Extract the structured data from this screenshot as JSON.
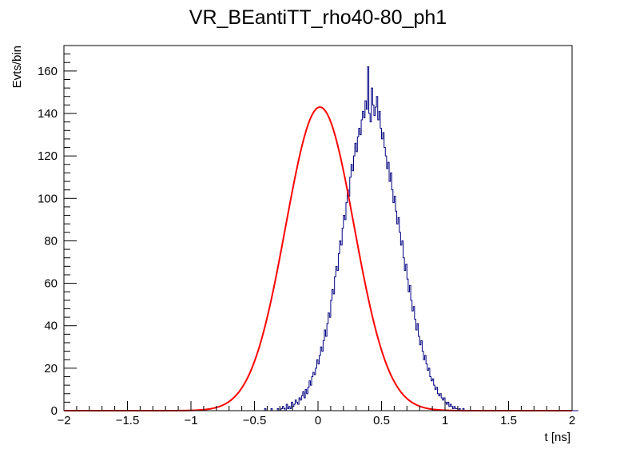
{
  "chart_data": {
    "type": "histogram",
    "title": "VR_BEantiTT_rho40-80_ph1",
    "xlabel": "t [ns]",
    "ylabel": "Evts/bin",
    "xlim": [
      -2,
      2
    ],
    "ylim": [
      0,
      172
    ],
    "x_ticks": [
      -2,
      -1.5,
      -1,
      -0.5,
      0,
      0.5,
      1,
      1.5,
      2
    ],
    "x_tick_labels": [
      "−2",
      "−1.5",
      "−1",
      "−0.5",
      "0",
      "0.5",
      "1",
      "1.5",
      "2"
    ],
    "y_ticks": [
      0,
      20,
      40,
      60,
      80,
      100,
      120,
      140,
      160
    ],
    "y_tick_labels": [
      "0",
      "20",
      "40",
      "60",
      "80",
      "100",
      "120",
      "140",
      "160"
    ],
    "grid": false,
    "series": [
      {
        "kind": "histogram",
        "color": "#000080",
        "bin_width": 0.01,
        "x_start": -2.0,
        "counts": [
          0,
          0,
          0,
          0,
          0,
          0,
          0,
          0,
          0,
          0,
          0,
          0,
          0,
          0,
          0,
          0,
          0,
          0,
          0,
          0,
          0,
          0,
          0,
          0,
          0,
          0,
          0,
          0,
          0,
          0,
          0,
          0,
          0,
          0,
          0,
          0,
          0,
          0,
          0,
          0,
          0,
          0,
          0,
          0,
          0,
          0,
          0,
          0,
          0,
          0,
          0,
          0,
          0,
          0,
          0,
          0,
          0,
          0,
          0,
          0,
          0,
          0,
          0,
          0,
          0,
          0,
          0,
          0,
          0,
          0,
          0,
          0,
          0,
          0,
          0,
          0,
          0,
          0,
          0,
          0,
          0,
          0,
          0,
          0,
          0,
          0,
          0,
          0,
          0,
          0,
          0,
          0,
          0,
          0,
          0,
          0,
          0,
          0,
          0,
          0,
          0,
          0,
          0,
          0,
          0,
          0,
          0,
          0,
          0,
          0,
          0,
          0,
          0,
          0,
          0,
          0,
          0,
          0,
          0,
          0,
          0,
          0,
          0,
          0,
          0,
          0,
          0,
          0,
          0,
          0,
          0,
          0,
          0,
          0,
          0,
          0,
          0,
          0,
          0,
          0,
          0,
          0,
          0,
          0,
          0,
          0,
          0,
          0,
          0,
          0,
          0,
          0,
          0,
          0,
          0,
          0,
          0,
          0,
          1,
          0,
          0,
          0,
          0,
          1,
          0,
          0,
          0,
          0,
          1,
          0,
          0,
          1,
          2,
          1,
          0,
          3,
          1,
          2,
          1,
          4,
          2,
          3,
          5,
          4,
          3,
          6,
          5,
          7,
          9,
          6,
          10,
          8,
          11,
          14,
          12,
          16,
          18,
          17,
          20,
          24,
          22,
          26,
          30,
          28,
          33,
          38,
          35,
          41,
          46,
          44,
          52,
          57,
          55,
          63,
          68,
          66,
          74,
          80,
          78,
          86,
          92,
          90,
          98,
          104,
          101,
          110,
          116,
          113,
          120,
          126,
          122,
          129,
          133,
          130,
          137,
          141,
          138,
          146,
          142,
          162,
          140,
          136,
          152,
          144,
          139,
          143,
          148,
          137,
          141,
          133,
          128,
          131,
          124,
          120,
          114,
          117,
          108,
          112,
          104,
          98,
          101,
          94,
          88,
          91,
          84,
          78,
          80,
          72,
          66,
          69,
          62,
          56,
          59,
          52,
          47,
          49,
          43,
          38,
          41,
          35,
          31,
          33,
          28,
          24,
          26,
          22,
          19,
          20,
          16,
          14,
          15,
          12,
          10,
          11,
          8,
          7,
          8,
          6,
          5,
          6,
          4,
          3,
          4,
          2,
          3,
          2,
          1,
          2,
          1,
          1,
          0,
          1,
          0,
          0,
          1,
          0,
          0,
          0,
          0,
          0,
          0,
          0,
          0,
          0,
          0,
          0,
          0,
          0,
          0,
          0,
          0,
          0,
          0,
          0,
          0,
          0,
          0,
          0,
          0,
          0,
          0,
          0,
          0,
          0,
          0,
          0,
          0,
          0,
          0,
          0,
          0,
          0,
          0,
          0,
          0,
          0,
          0,
          0,
          0,
          0,
          0,
          0,
          0,
          0,
          0,
          0,
          0,
          0,
          0,
          0,
          0,
          0,
          0,
          0,
          0,
          0,
          0,
          0,
          0,
          0,
          0,
          0,
          0,
          0,
          0,
          0,
          0,
          0,
          0,
          0,
          0,
          0,
          0,
          0,
          0,
          0,
          0,
          0,
          0,
          0,
          0,
          0,
          0,
          0,
          0
        ]
      },
      {
        "kind": "fit",
        "function": "gaussian",
        "color": "#ff0000",
        "amplitude": 143,
        "mean": 0.015,
        "sigma": 0.27
      }
    ]
  }
}
